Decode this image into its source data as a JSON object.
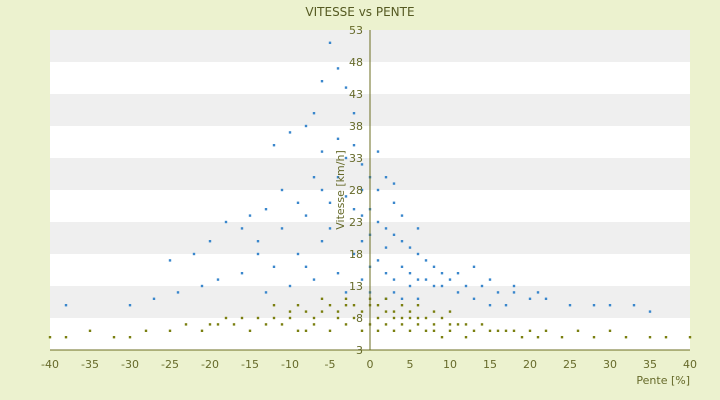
{
  "chart_data": {
    "type": "scatter",
    "title": "VITESSE vs PENTE",
    "xlabel": "Pente [%]",
    "ylabel": "Vitesse [km/h]",
    "xlim": [
      -40,
      40
    ],
    "ylim": [
      3,
      53
    ],
    "x_ticks": [
      "-40",
      "-35",
      "-30",
      "-25",
      "-20",
      "-15",
      "-10",
      "-5",
      "0",
      "5",
      "10",
      "15",
      "20",
      "25",
      "30",
      "35",
      "40"
    ],
    "y_ticks": [
      "3",
      "8",
      "13",
      "18",
      "23",
      "28",
      "33",
      "38",
      "43",
      "48",
      "53"
    ],
    "grid": "horizontal alternating bands",
    "legend": "none",
    "colors": {
      "background": "#ecf2cf",
      "band_light": "#ffffff",
      "band_dark": "#efefef",
      "series_fast": "#3a87cc",
      "series_slow": "#7a7f10",
      "axis": "#6b6e22"
    },
    "series": [
      {
        "values": [
          [
            -8,
            38
          ],
          [
            -6,
            45
          ],
          [
            -5,
            51
          ],
          [
            -4,
            47
          ],
          [
            -7,
            40
          ],
          [
            -10,
            37
          ],
          [
            -12,
            35
          ],
          [
            -3,
            44
          ],
          [
            -2,
            35
          ],
          [
            -1,
            32
          ],
          [
            1,
            34
          ],
          [
            2,
            30
          ],
          [
            3,
            29
          ],
          [
            -4,
            30
          ],
          [
            -6,
            28
          ],
          [
            -9,
            26
          ],
          [
            -13,
            25
          ],
          [
            -15,
            24
          ],
          [
            -18,
            23
          ],
          [
            -20,
            20
          ],
          [
            -22,
            18
          ],
          [
            -25,
            17
          ],
          [
            -14,
            20
          ],
          [
            -11,
            22
          ],
          [
            -8,
            24
          ],
          [
            -5,
            26
          ],
          [
            -3,
            27
          ],
          [
            -2,
            25
          ],
          [
            0,
            25
          ],
          [
            1,
            23
          ],
          [
            2,
            22
          ],
          [
            3,
            21
          ],
          [
            4,
            20
          ],
          [
            5,
            19
          ],
          [
            6,
            18
          ],
          [
            7,
            17
          ],
          [
            8,
            16
          ],
          [
            9,
            15
          ],
          [
            10,
            14
          ],
          [
            12,
            13
          ],
          [
            14,
            13
          ],
          [
            16,
            12
          ],
          [
            18,
            12
          ],
          [
            20,
            11
          ],
          [
            22,
            11
          ],
          [
            25,
            10
          ],
          [
            28,
            10
          ],
          [
            30,
            10
          ],
          [
            33,
            10
          ],
          [
            35,
            9
          ],
          [
            -6,
            20
          ],
          [
            -9,
            18
          ],
          [
            -12,
            16
          ],
          [
            -16,
            15
          ],
          [
            -19,
            14
          ],
          [
            -21,
            13
          ],
          [
            -24,
            12
          ],
          [
            -27,
            11
          ],
          [
            -30,
            10
          ],
          [
            -38,
            10
          ],
          [
            -2,
            18
          ],
          [
            -1,
            20
          ],
          [
            0,
            16
          ],
          [
            1,
            17
          ],
          [
            2,
            15
          ],
          [
            3,
            14
          ],
          [
            4,
            16
          ],
          [
            5,
            13
          ],
          [
            6,
            14
          ],
          [
            8,
            13
          ],
          [
            11,
            12
          ],
          [
            13,
            11
          ],
          [
            15,
            10
          ],
          [
            17,
            10
          ],
          [
            -4,
            15
          ],
          [
            -7,
            14
          ],
          [
            -10,
            13
          ],
          [
            -13,
            12
          ],
          [
            -3,
            12
          ],
          [
            0,
            12
          ],
          [
            2,
            11
          ],
          [
            4,
            11
          ],
          [
            6,
            11
          ],
          [
            1,
            28
          ],
          [
            -1,
            28
          ],
          [
            0,
            30
          ],
          [
            3,
            26
          ],
          [
            -5,
            22
          ],
          [
            -7,
            30
          ],
          [
            -3,
            33
          ],
          [
            -1,
            24
          ],
          [
            2,
            19
          ],
          [
            4,
            24
          ],
          [
            6,
            22
          ],
          [
            -8,
            16
          ],
          [
            -11,
            28
          ],
          [
            -14,
            18
          ],
          [
            -16,
            22
          ],
          [
            -6,
            34
          ],
          [
            -2,
            40
          ],
          [
            -4,
            36
          ],
          [
            0,
            21
          ],
          [
            -1,
            14
          ],
          [
            3,
            12
          ],
          [
            5,
            15
          ],
          [
            7,
            14
          ],
          [
            9,
            13
          ],
          [
            11,
            15
          ],
          [
            13,
            16
          ],
          [
            15,
            14
          ],
          [
            18,
            13
          ],
          [
            21,
            12
          ]
        ]
      },
      {
        "values": [
          [
            -40,
            5
          ],
          [
            -38,
            5
          ],
          [
            -35,
            6
          ],
          [
            -32,
            5
          ],
          [
            -30,
            5
          ],
          [
            -28,
            6
          ],
          [
            -25,
            6
          ],
          [
            -23,
            7
          ],
          [
            -20,
            7
          ],
          [
            -18,
            8
          ],
          [
            -16,
            8
          ],
          [
            -14,
            8
          ],
          [
            -12,
            8
          ],
          [
            -10,
            9
          ],
          [
            -8,
            9
          ],
          [
            -6,
            9
          ],
          [
            -5,
            10
          ],
          [
            -4,
            9
          ],
          [
            -3,
            10
          ],
          [
            -2,
            10
          ],
          [
            -1,
            9
          ],
          [
            0,
            10
          ],
          [
            1,
            10
          ],
          [
            2,
            9
          ],
          [
            3,
            9
          ],
          [
            4,
            8
          ],
          [
            5,
            9
          ],
          [
            6,
            8
          ],
          [
            7,
            8
          ],
          [
            8,
            7
          ],
          [
            9,
            8
          ],
          [
            10,
            7
          ],
          [
            11,
            7
          ],
          [
            12,
            7
          ],
          [
            13,
            6
          ],
          [
            14,
            7
          ],
          [
            15,
            6
          ],
          [
            16,
            6
          ],
          [
            17,
            6
          ],
          [
            18,
            6
          ],
          [
            19,
            5
          ],
          [
            20,
            6
          ],
          [
            21,
            5
          ],
          [
            22,
            6
          ],
          [
            24,
            5
          ],
          [
            26,
            6
          ],
          [
            28,
            5
          ],
          [
            30,
            6
          ],
          [
            32,
            5
          ],
          [
            35,
            5
          ],
          [
            37,
            5
          ],
          [
            40,
            5
          ],
          [
            -15,
            6
          ],
          [
            -13,
            7
          ],
          [
            -11,
            7
          ],
          [
            -9,
            6
          ],
          [
            -7,
            7
          ],
          [
            -5,
            6
          ],
          [
            -3,
            7
          ],
          [
            -1,
            6
          ],
          [
            0,
            7
          ],
          [
            1,
            6
          ],
          [
            2,
            7
          ],
          [
            3,
            6
          ],
          [
            4,
            7
          ],
          [
            5,
            6
          ],
          [
            6,
            7
          ],
          [
            7,
            6
          ],
          [
            8,
            6
          ],
          [
            9,
            5
          ],
          [
            10,
            6
          ],
          [
            12,
            5
          ],
          [
            -21,
            6
          ],
          [
            -19,
            7
          ],
          [
            -17,
            7
          ],
          [
            -12,
            10
          ],
          [
            -9,
            10
          ],
          [
            -6,
            11
          ],
          [
            -3,
            11
          ],
          [
            0,
            11
          ],
          [
            2,
            11
          ],
          [
            4,
            10
          ],
          [
            6,
            10
          ],
          [
            8,
            9
          ],
          [
            10,
            9
          ],
          [
            -2,
            8
          ],
          [
            1,
            8
          ],
          [
            3,
            8
          ],
          [
            -7,
            8
          ],
          [
            -4,
            8
          ],
          [
            5,
            8
          ],
          [
            -8,
            6
          ],
          [
            -10,
            8
          ]
        ]
      }
    ]
  }
}
